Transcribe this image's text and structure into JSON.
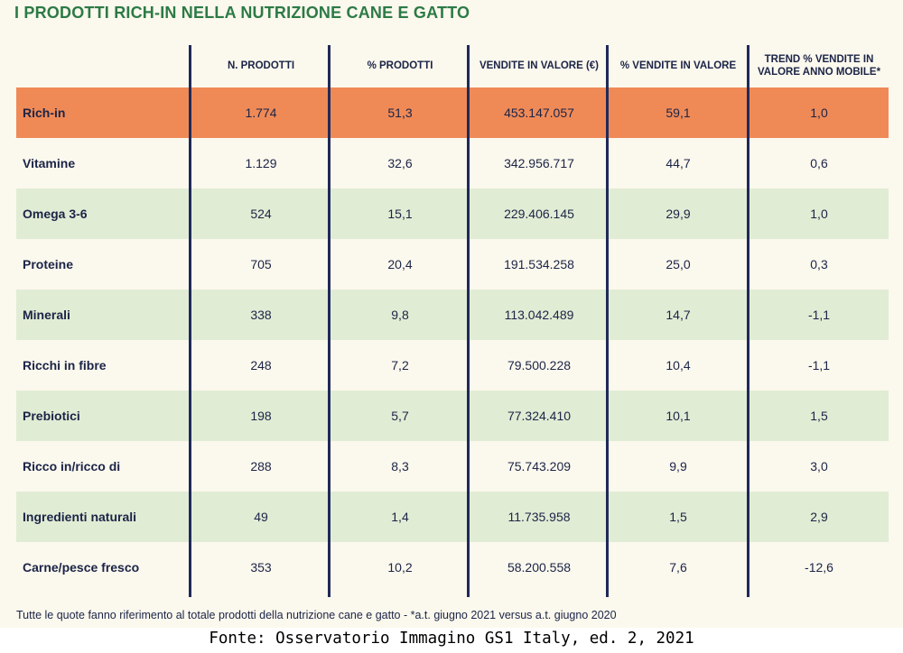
{
  "title": "I PRODOTTI RICH-IN NELLA NUTRIZIONE CANE E GATTO",
  "chart_data": {
    "type": "table",
    "columns": [
      "",
      "N. PRODOTTI",
      "% PRODOTTI",
      "VENDITE IN VALORE (€)",
      "% VENDITE IN VALORE",
      "TREND % VENDITE IN VALORE ANNO MOBILE*"
    ],
    "rows": [
      {
        "label": "Rich-in",
        "n_prodotti": "1.774",
        "pct_prodotti": "51,3",
        "vendite": "453.147.057",
        "pct_vendite": "59,1",
        "trend": "1,0"
      },
      {
        "label": "Vitamine",
        "n_prodotti": "1.129",
        "pct_prodotti": "32,6",
        "vendite": "342.956.717",
        "pct_vendite": "44,7",
        "trend": "0,6"
      },
      {
        "label": "Omega 3-6",
        "n_prodotti": "524",
        "pct_prodotti": "15,1",
        "vendite": "229.406.145",
        "pct_vendite": "29,9",
        "trend": "1,0"
      },
      {
        "label": "Proteine",
        "n_prodotti": "705",
        "pct_prodotti": "20,4",
        "vendite": "191.534.258",
        "pct_vendite": "25,0",
        "trend": "0,3"
      },
      {
        "label": "Minerali",
        "n_prodotti": "338",
        "pct_prodotti": "9,8",
        "vendite": "113.042.489",
        "pct_vendite": "14,7",
        "trend": "-1,1"
      },
      {
        "label": "Ricchi in fibre",
        "n_prodotti": "248",
        "pct_prodotti": "7,2",
        "vendite": "79.500.228",
        "pct_vendite": "10,4",
        "trend": "-1,1"
      },
      {
        "label": "Prebiotici",
        "n_prodotti": "198",
        "pct_prodotti": "5,7",
        "vendite": "77.324.410",
        "pct_vendite": "10,1",
        "trend": "1,5"
      },
      {
        "label": "Ricco in/ricco di",
        "n_prodotti": "288",
        "pct_prodotti": "8,3",
        "vendite": "75.743.209",
        "pct_vendite": "9,9",
        "trend": "3,0"
      },
      {
        "label": "Ingredienti naturali",
        "n_prodotti": "49",
        "pct_prodotti": "1,4",
        "vendite": "11.735.958",
        "pct_vendite": "1,5",
        "trend": "2,9"
      },
      {
        "label": "Carne/pesce fresco",
        "n_prodotti": "353",
        "pct_prodotti": "10,2",
        "vendite": "58.200.558",
        "pct_vendite": "7,6",
        "trend": "-12,6"
      }
    ],
    "highlight_row": "Rich-in"
  },
  "footnote": "Tutte le quote fanno riferimento al totale prodotti della nutrizione cane e gatto - *a.t. giugno 2021 versus a.t. giugno 2020",
  "source": "Fonte: Osservatorio Immagino GS1 Italy, ed. 2, 2021",
  "colors": {
    "title_green": "#2c7a45",
    "highlight_orange": "#ef8a57",
    "stripe_green": "#e1ecd4",
    "text_navy": "#1b2447",
    "divider_navy": "#1f2a5a",
    "panel_background": "#fbf8ed"
  }
}
